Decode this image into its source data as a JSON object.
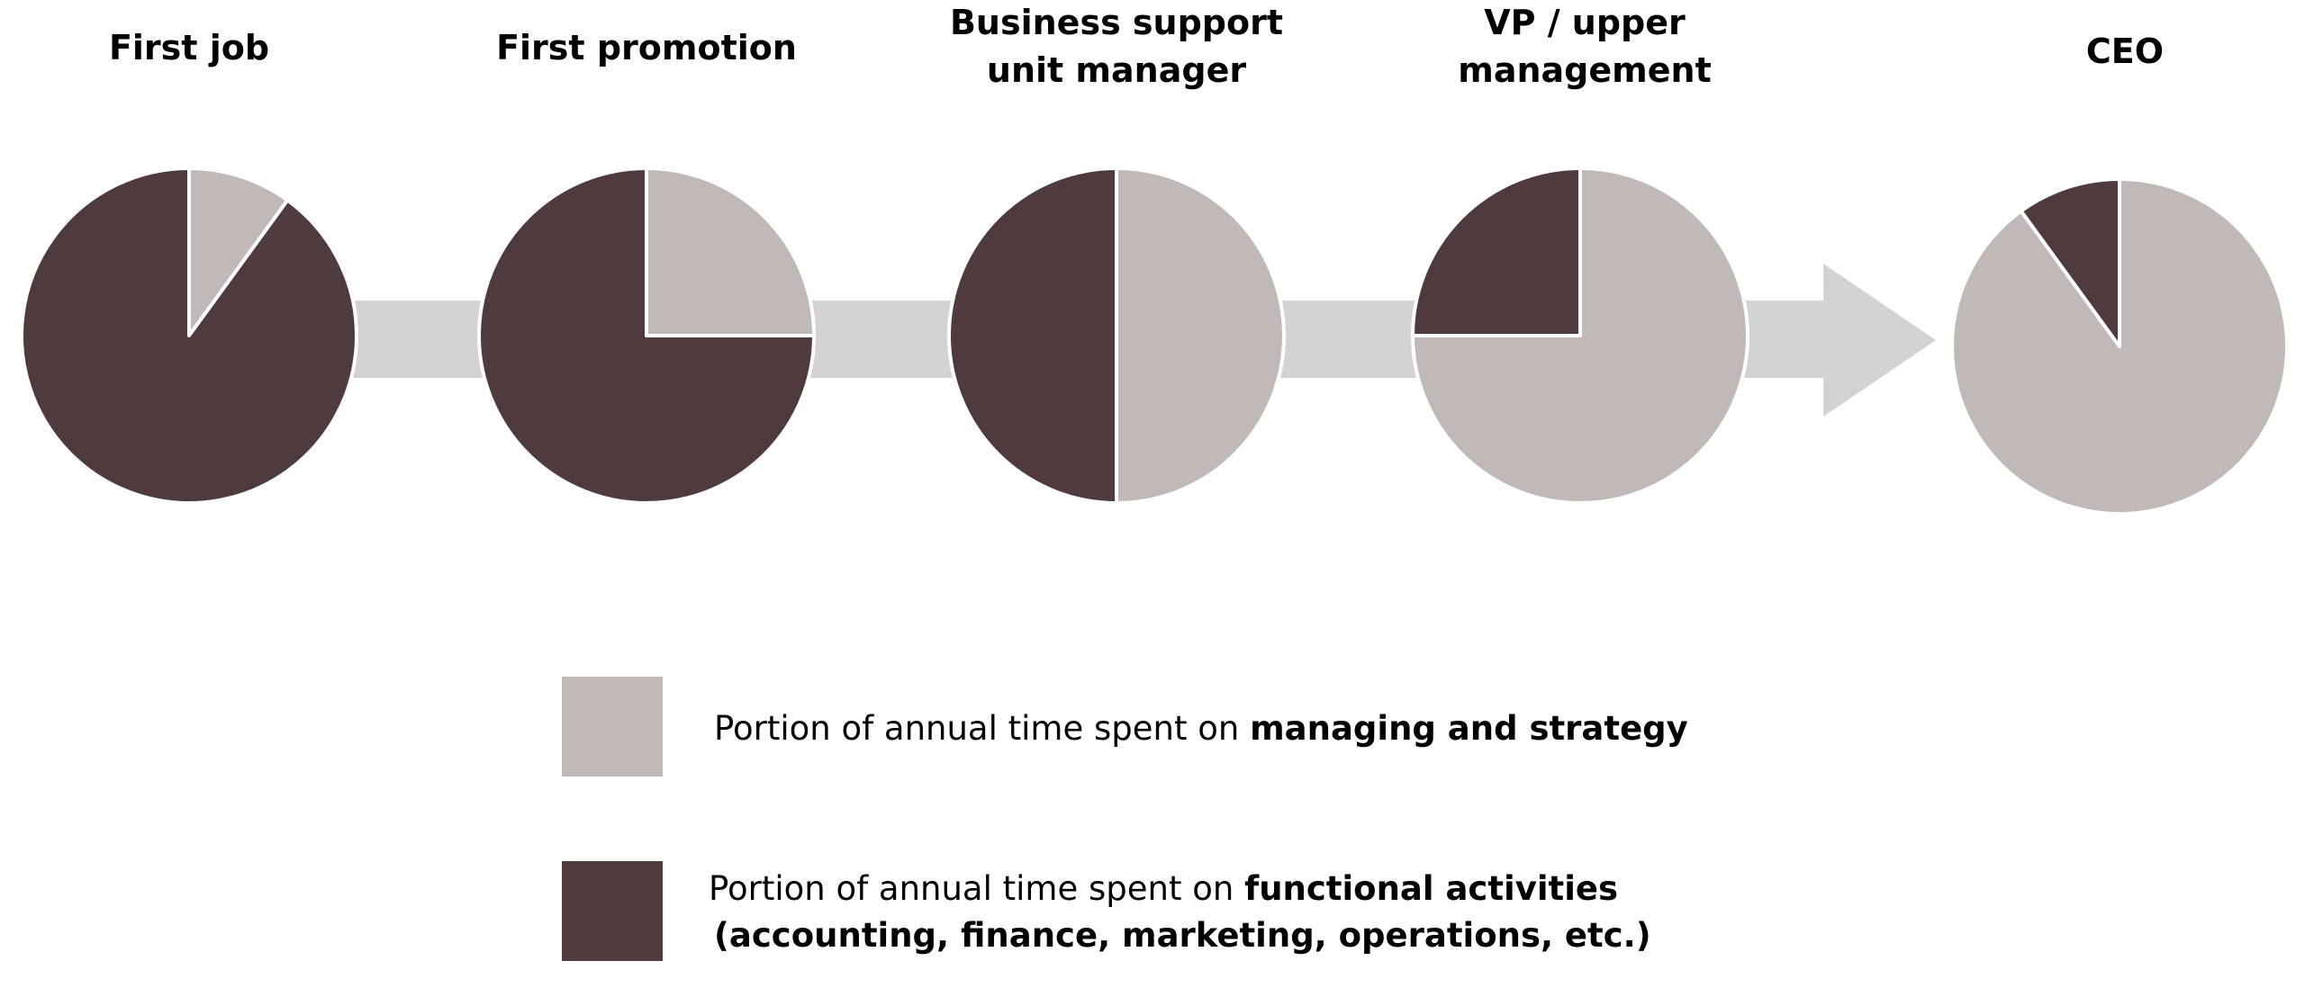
{
  "chart_data": {
    "type": "pie",
    "stages": [
      {
        "title_lines": [
          "First job"
        ],
        "managing_share": 0.1,
        "functional_share": 0.9
      },
      {
        "title_lines": [
          "First promotion"
        ],
        "managing_share": 0.25,
        "functional_share": 0.75
      },
      {
        "title_lines": [
          "Business support",
          "unit manager"
        ],
        "managing_share": 0.5,
        "functional_share": 0.5
      },
      {
        "title_lines": [
          "VP / upper",
          "management"
        ],
        "managing_share": 0.75,
        "functional_share": 0.25
      },
      {
        "title_lines": [
          "CEO"
        ],
        "managing_share": 0.9,
        "functional_share": 0.1
      }
    ],
    "legend": {
      "managing": {
        "text_plain": "Portion of annual time spent on ",
        "text_bold": "managing and strategy",
        "color": "#c1b8b8"
      },
      "functional": {
        "line1_plain": "Portion of annual time spent on ",
        "line1_bold": "functional activities",
        "line2_bold": "(accounting, finance, marketing, operations, etc.)",
        "color": "#4f3b3e"
      }
    },
    "arrow_color": "#d3d3d3"
  }
}
